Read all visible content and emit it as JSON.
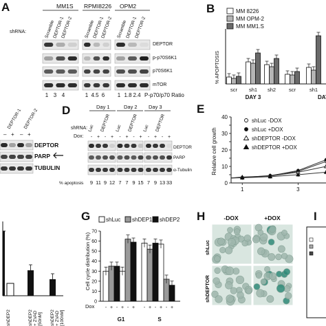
{
  "panels": {
    "A": {
      "letter": "A",
      "cell_lines": [
        "MM1S",
        "RPMI8226",
        "OPM2"
      ],
      "shrna_label": "shRNA:",
      "lane_labels": [
        "Scramble",
        "DEPTOR-1",
        "DEPTOR-2",
        "Scramble",
        "DEPTOR-1",
        "DEPTOR-2",
        "Scramble",
        "DEPTOR-1",
        "DEPTOR-2"
      ],
      "blot_labels": [
        "DEPTOR",
        "p-p70S6K1",
        "p70S6K1",
        "mTOR"
      ],
      "ratios": [
        "1",
        "3",
        "4",
        "1",
        "4.5",
        "6",
        "1",
        "1.8",
        "2.4"
      ],
      "ratio_label": "P-p70/p70 Ratio"
    },
    "B": {
      "letter": "B",
      "legend": [
        "MM 8226",
        "MM OPM-2",
        "MM MM1.S"
      ],
      "ylabel": "% APOPTOSIS",
      "yticks": [
        "0",
        "20",
        "40",
        "60",
        "80"
      ],
      "xticks": [
        "scr",
        "sh1",
        "sh2",
        "scr",
        "sh1"
      ],
      "groups": [
        "DAY 3",
        "DAY"
      ]
    },
    "C": {
      "lane_labels": [
        "DEPTOR-1",
        "DEPTOR-2"
      ],
      "signs": [
        "–",
        "+",
        "–",
        "+"
      ],
      "blot_labels": [
        "DEPTOR",
        "PARP",
        "TUBULIN"
      ]
    },
    "D": {
      "letter": "D",
      "days": [
        "Day 1",
        "Day 2",
        "Day 3"
      ],
      "shrna_label": "shRNA:",
      "lane_groups": [
        "Luc",
        "DEPTOR",
        "Luc",
        "DEPTOR",
        "Luc",
        "DEPTOR"
      ],
      "dox_label": "Dox:",
      "dox_signs": [
        "-",
        "+",
        "-",
        "+",
        "-",
        "+",
        "-",
        "+",
        "-",
        "+",
        "-",
        "+"
      ],
      "blot_labels": [
        "DEPTOR",
        "PARP",
        "α-Tubulin"
      ],
      "apoptosis_label": "% apoptosis",
      "apoptosis_values": [
        "9",
        "11",
        "9",
        "12",
        "7",
        "7",
        "9",
        "15",
        "7",
        "9",
        "13",
        "33"
      ]
    },
    "E": {
      "letter": "E",
      "ylabel": "Relative cell growth",
      "yticks": [
        "0",
        "5",
        "10",
        "15",
        "20",
        "25",
        "30",
        "35",
        "40"
      ],
      "xticks": [
        "1",
        "3"
      ],
      "legend": [
        "shLuc -DOX",
        "shLuc +DOX",
        "shDEPTOR -DOX",
        "shDEPTOR +DOX"
      ]
    },
    "F": {
      "xlabels": [
        "shDEP2",
        "shDEP2\n+ ZVAD\n[50nM]",
        "shDEP2\n+ ZVAD\n[100nM]"
      ]
    },
    "G": {
      "letter": "G",
      "legend": [
        "shLuc",
        "shDEP1",
        "shDEP2"
      ],
      "ylabel": "Cell cycle distribution (%)",
      "yticks": [
        "0",
        "10",
        "20",
        "30",
        "40",
        "50",
        "60",
        "70"
      ],
      "dox_label": "Dox",
      "dox_signs": [
        "-",
        "+",
        "-",
        "+",
        "-",
        "+",
        "-",
        "+",
        "-",
        "+",
        "-",
        "+"
      ],
      "groups": [
        "G1",
        "S"
      ]
    },
    "H": {
      "letter": "H",
      "columns": [
        "-DOX",
        "+DOX"
      ],
      "rows": [
        "shLuc",
        "shDEPTOR"
      ]
    },
    "I": {
      "letter": "I"
    }
  },
  "chart_data": [
    {
      "panel": "B",
      "type": "bar",
      "ylim": [
        0,
        80
      ],
      "categories": [
        "scr",
        "sh1",
        "sh2",
        "scr",
        "sh1"
      ],
      "series": [
        {
          "name": "MM 8226",
          "values": [
            10,
            32,
            28,
            14,
            24
          ]
        },
        {
          "name": "MM OPM-2",
          "values": [
            8,
            30,
            25,
            13,
            20
          ]
        },
        {
          "name": "MM MM1.S",
          "values": [
            11,
            45,
            37,
            18,
            70
          ]
        }
      ],
      "colors": [
        "#ffffff",
        "#b5b5b5",
        "#6a6a6a"
      ]
    },
    {
      "panel": "G",
      "type": "bar",
      "ylim": [
        0,
        70
      ],
      "series": [
        {
          "name": "shLuc",
          "values": [
            30,
            30,
            58,
            57
          ]
        },
        {
          "name": "shDEP1",
          "values": [
            35,
            62,
            52,
            22
          ]
        },
        {
          "name": "shDEP2",
          "values": [
            35,
            59,
            58,
            16
          ]
        }
      ],
      "colors": [
        "#ffffff",
        "#9a9a9a",
        "#111111"
      ]
    },
    {
      "panel": "E",
      "type": "line",
      "x": [
        0.6,
        1,
        2,
        3,
        4
      ],
      "ylim": [
        0,
        40
      ],
      "series": [
        {
          "name": "shLuc -DOX",
          "values": [
            3,
            3.3,
            4.5,
            7,
            13
          ]
        },
        {
          "name": "shLuc +DOX",
          "values": [
            3,
            3.2,
            4.3,
            7.5,
            14
          ]
        },
        {
          "name": "shDEPTOR -DOX",
          "values": [
            3,
            3.6,
            4.2,
            6.5,
            10
          ]
        },
        {
          "name": "shDEPTOR +DOX",
          "values": [
            3,
            3.1,
            3.8,
            5,
            6.5
          ]
        }
      ]
    }
  ]
}
